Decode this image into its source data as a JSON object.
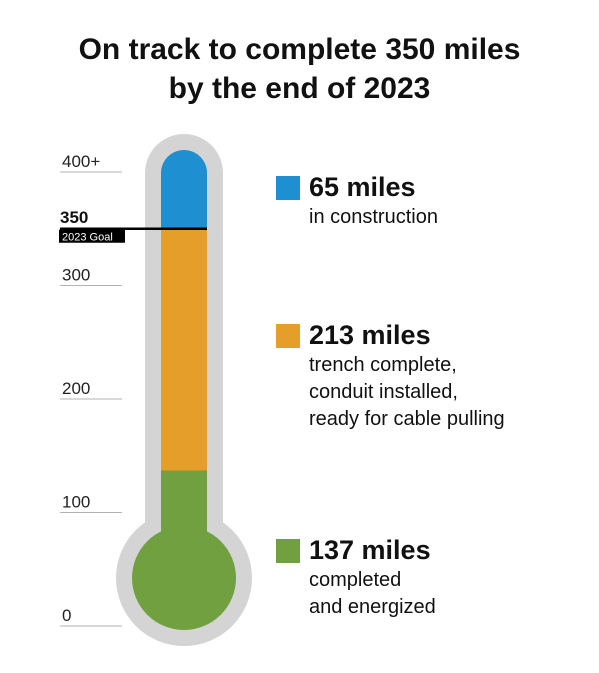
{
  "title": {
    "line1": "On track to complete 350 miles",
    "line2": "by the end of 2023"
  },
  "chart_data": {
    "type": "bar",
    "subtype": "stacked-thermometer",
    "unit": "miles",
    "ylim": [
      0,
      400
    ],
    "y_ticks": [
      {
        "value": 0,
        "label": "0"
      },
      {
        "value": 100,
        "label": "100"
      },
      {
        "value": 200,
        "label": "200"
      },
      {
        "value": 300,
        "label": "300"
      },
      {
        "value": 400,
        "label": "400+"
      }
    ],
    "goal": {
      "value": 350,
      "label": "350",
      "text": "2023 Goal"
    },
    "series": [
      {
        "name": "completed and energized",
        "value": 137,
        "value_label": "137 miles",
        "desc_lines": [
          "completed",
          "and energized"
        ],
        "color": "#70a03f"
      },
      {
        "name": "trench complete, conduit installed, ready for cable pulling",
        "value": 213,
        "value_label": "213 miles",
        "desc_lines": [
          "trench complete,",
          "conduit installed,",
          "ready for cable pulling"
        ],
        "color": "#e69e2b"
      },
      {
        "name": "in construction",
        "value": 65,
        "value_label": "65 miles",
        "desc_lines": [
          "in construction"
        ],
        "color": "#1e8fd0"
      }
    ],
    "legend_position": "right",
    "grid": false
  }
}
